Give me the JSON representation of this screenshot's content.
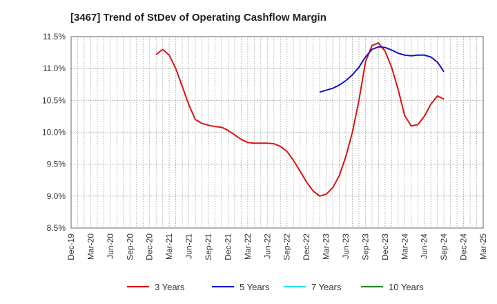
{
  "chart_data": {
    "type": "line",
    "title": "[3467]  Trend of StDev of Operating Cashflow Margin",
    "xlabel": "",
    "ylabel": "",
    "ylim": [
      8.5,
      11.5
    ],
    "yticks": [
      "8.5%",
      "9.0%",
      "9.5%",
      "10.0%",
      "10.5%",
      "11.0%",
      "11.5%"
    ],
    "categories": [
      "Dec-19",
      "Mar-20",
      "Jun-20",
      "Sep-20",
      "Dec-20",
      "Mar-21",
      "Jun-21",
      "Sep-21",
      "Dec-21",
      "Mar-22",
      "Jun-22",
      "Sep-22",
      "Dec-22",
      "Mar-23",
      "Jun-23",
      "Sep-23",
      "Dec-23",
      "Mar-24",
      "Jun-24",
      "Sep-24",
      "Dec-24",
      "Mar-25"
    ],
    "grid": true,
    "legend_position": "bottom",
    "series": [
      {
        "name": "3 Years",
        "color": "#dd1111",
        "points": [
          [
            "Jan-21",
            11.22
          ],
          [
            "Feb-21",
            11.3
          ],
          [
            "Mar-21",
            11.21
          ],
          [
            "Apr-21",
            11.0
          ],
          [
            "May-21",
            10.72
          ],
          [
            "Jun-21",
            10.43
          ],
          [
            "Jul-21",
            10.2
          ],
          [
            "Aug-21",
            10.14
          ],
          [
            "Sep-21",
            10.11
          ],
          [
            "Oct-21",
            10.09
          ],
          [
            "Nov-21",
            10.08
          ],
          [
            "Dec-21",
            10.03
          ],
          [
            "Jan-22",
            9.96
          ],
          [
            "Feb-22",
            9.89
          ],
          [
            "Mar-22",
            9.84
          ],
          [
            "Apr-22",
            9.83
          ],
          [
            "May-22",
            9.83
          ],
          [
            "Jun-22",
            9.83
          ],
          [
            "Jul-22",
            9.82
          ],
          [
            "Aug-22",
            9.78
          ],
          [
            "Sep-22",
            9.7
          ],
          [
            "Oct-22",
            9.56
          ],
          [
            "Nov-22",
            9.39
          ],
          [
            "Dec-22",
            9.22
          ],
          [
            "Jan-23",
            9.08
          ],
          [
            "Feb-23",
            9.0
          ],
          [
            "Mar-23",
            9.03
          ],
          [
            "Apr-23",
            9.13
          ],
          [
            "May-23",
            9.32
          ],
          [
            "Jun-23",
            9.62
          ],
          [
            "Jul-23",
            10.0
          ],
          [
            "Aug-23",
            10.5
          ],
          [
            "Sep-23",
            11.1
          ],
          [
            "Oct-23",
            11.36
          ],
          [
            "Nov-23",
            11.4
          ],
          [
            "Dec-23",
            11.27
          ],
          [
            "Jan-24",
            11.02
          ],
          [
            "Feb-24",
            10.67
          ],
          [
            "Mar-24",
            10.26
          ],
          [
            "Apr-24",
            10.1
          ],
          [
            "May-24",
            10.12
          ],
          [
            "Jun-24",
            10.25
          ],
          [
            "Jul-24",
            10.44
          ],
          [
            "Aug-24",
            10.57
          ],
          [
            "Sep-24",
            10.52
          ]
        ]
      },
      {
        "name": "5 Years",
        "color": "#1111cc",
        "points": [
          [
            "Feb-23",
            10.63
          ],
          [
            "Mar-23",
            10.66
          ],
          [
            "Apr-23",
            10.69
          ],
          [
            "May-23",
            10.74
          ],
          [
            "Jun-23",
            10.81
          ],
          [
            "Jul-23",
            10.9
          ],
          [
            "Aug-23",
            11.02
          ],
          [
            "Sep-23",
            11.18
          ],
          [
            "Oct-23",
            11.3
          ],
          [
            "Nov-23",
            11.34
          ],
          [
            "Dec-23",
            11.33
          ],
          [
            "Jan-24",
            11.29
          ],
          [
            "Feb-24",
            11.24
          ],
          [
            "Mar-24",
            11.21
          ],
          [
            "Apr-24",
            11.2
          ],
          [
            "May-24",
            11.21
          ],
          [
            "Jun-24",
            11.21
          ],
          [
            "Jul-24",
            11.18
          ],
          [
            "Aug-24",
            11.1
          ],
          [
            "Sep-24",
            10.95
          ]
        ]
      },
      {
        "name": "7 Years",
        "color": "#22ddee",
        "points": []
      },
      {
        "name": "10 Years",
        "color": "#228822",
        "points": []
      }
    ]
  }
}
